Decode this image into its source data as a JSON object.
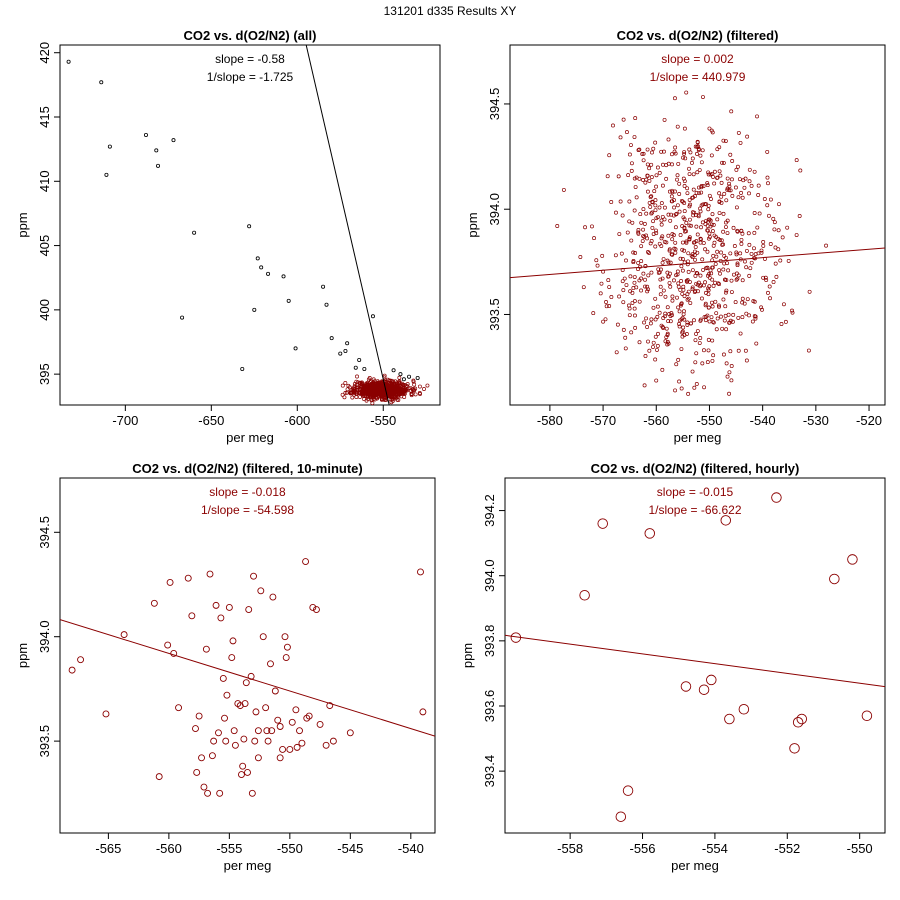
{
  "figure_title": "131201   d335   Results XY",
  "colors": {
    "all_points": "#000000",
    "filtered": "#8b0000",
    "all_line": "#000000"
  },
  "chart_data": [
    {
      "type": "scatter",
      "title": "CO2 vs. d(O2/N2) (all)",
      "xlabel": "per meg",
      "ylabel": "ppm",
      "xlim": [
        -738,
        -517
      ],
      "ylim": [
        392.6,
        420.6
      ],
      "xticks": [
        -700,
        -650,
        -600,
        -550
      ],
      "yticks": [
        395,
        400,
        405,
        410,
        415,
        420
      ],
      "annotations": [
        "slope = -0.58",
        "1/slope = -1.725"
      ],
      "fit": {
        "slope": -0.58,
        "intercept": 75.6
      },
      "point_size": 1.6,
      "outliers": [
        [
          -733,
          419.3
        ],
        [
          -714,
          417.7
        ],
        [
          -709,
          412.7
        ],
        [
          -711,
          410.5
        ],
        [
          -688,
          413.6
        ],
        [
          -682,
          412.4
        ],
        [
          -681,
          411.2
        ],
        [
          -672,
          413.2
        ],
        [
          -660,
          406.0
        ],
        [
          -667,
          399.4
        ],
        [
          -632,
          395.4
        ],
        [
          -628,
          406.5
        ],
        [
          -623,
          404.0
        ],
        [
          -621,
          403.3
        ],
        [
          -617,
          402.8
        ],
        [
          -608,
          402.6
        ],
        [
          -625,
          400.0
        ],
        [
          -605,
          400.7
        ],
        [
          -601,
          397.0
        ],
        [
          -585,
          401.8
        ],
        [
          -583,
          400.4
        ],
        [
          -580,
          397.8
        ],
        [
          -575,
          396.6
        ],
        [
          -572,
          396.8
        ],
        [
          -571,
          397.4
        ],
        [
          -566,
          395.5
        ],
        [
          -564,
          396.1
        ],
        [
          -561,
          395.4
        ],
        [
          -556,
          399.5
        ],
        [
          -544,
          395.3
        ],
        [
          -540,
          395.0
        ],
        [
          -535,
          394.8
        ],
        [
          -530,
          394.7
        ],
        [
          -538,
          394.6
        ]
      ],
      "cluster": {
        "x_center": -551,
        "x_spread": 8,
        "x_min": -575,
        "x_max": -524,
        "y_center": 393.8,
        "y_spread": 0.35,
        "n": 700,
        "seed": 11,
        "color": "#8b0000"
      }
    },
    {
      "type": "scatter",
      "title": "CO2 vs. d(O2/N2) (filtered)",
      "xlabel": "per meg",
      "ylabel": "ppm",
      "xlim": [
        -587.5,
        -517
      ],
      "ylim": [
        393.07,
        394.78
      ],
      "xticks": [
        -580,
        -570,
        -560,
        -550,
        -540,
        -530,
        -520
      ],
      "yticks": [
        393.5,
        394.0,
        394.5
      ],
      "annotations": [
        "slope = 0.002",
        "1/slope = 440.979"
      ],
      "fit": {
        "slope": 0.002,
        "intercept": 394.85
      },
      "point_size": 1.6,
      "cluster": {
        "x_center": -554,
        "x_spread": 8,
        "x_min": -585,
        "x_max": -519,
        "y_center": 393.8,
        "y_spread": 0.33,
        "n": 800,
        "seed": 23,
        "color": "#8b0000"
      }
    },
    {
      "type": "scatter",
      "title": "CO2 vs. d(O2/N2) (filtered, 10-minute)",
      "xlabel": "per meg",
      "ylabel": "ppm",
      "xlim": [
        -569,
        -538
      ],
      "ylim": [
        393.06,
        394.76
      ],
      "xticks": [
        -565,
        -560,
        -555,
        -550,
        -545,
        -540
      ],
      "yticks": [
        393.5,
        394.0,
        394.5
      ],
      "annotations": [
        "slope = -0.018",
        "1/slope = -54.598"
      ],
      "fit": {
        "slope": -0.018,
        "intercept": 383.84
      },
      "point_size": 3.0,
      "points": [
        [
          -568,
          393.84
        ],
        [
          -567.3,
          393.89
        ],
        [
          -565.2,
          393.63
        ],
        [
          -563.7,
          394.01
        ],
        [
          -561.2,
          394.16
        ],
        [
          -560.8,
          393.33
        ],
        [
          -560.1,
          393.96
        ],
        [
          -559.9,
          394.26
        ],
        [
          -559.6,
          393.92
        ],
        [
          -559.2,
          393.66
        ],
        [
          -558.4,
          394.28
        ],
        [
          -558.1,
          394.1
        ],
        [
          -557.8,
          393.56
        ],
        [
          -557.7,
          393.35
        ],
        [
          -557.5,
          393.62
        ],
        [
          -557.3,
          393.42
        ],
        [
          -557.1,
          393.28
        ],
        [
          -556.9,
          393.94
        ],
        [
          -556.6,
          394.3
        ],
        [
          -556.4,
          393.43
        ],
        [
          -556.3,
          393.5
        ],
        [
          -556.1,
          394.15
        ],
        [
          -555.9,
          393.54
        ],
        [
          -555.7,
          394.09
        ],
        [
          -555.4,
          393.61
        ],
        [
          -555.2,
          393.72
        ],
        [
          -555.0,
          394.14
        ],
        [
          -554.8,
          393.9
        ],
        [
          -554.5,
          393.48
        ],
        [
          -554.3,
          393.68
        ],
        [
          -554.1,
          393.67
        ],
        [
          -553.8,
          393.51
        ],
        [
          -553.6,
          393.78
        ],
        [
          -553.5,
          393.35
        ],
        [
          -553.4,
          394.13
        ],
        [
          -553.2,
          393.81
        ],
        [
          -553.0,
          394.29
        ],
        [
          -552.8,
          393.64
        ],
        [
          -552.6,
          393.42
        ],
        [
          -552.4,
          394.22
        ],
        [
          -552.2,
          394.0
        ],
        [
          -552.0,
          393.66
        ],
        [
          -551.8,
          393.5
        ],
        [
          -551.6,
          393.87
        ],
        [
          -551.4,
          394.19
        ],
        [
          -551.2,
          393.74
        ],
        [
          -551.0,
          393.6
        ],
        [
          -550.8,
          393.57
        ],
        [
          -550.6,
          393.46
        ],
        [
          -550.4,
          394.0
        ],
        [
          -550.2,
          393.95
        ],
        [
          -550.0,
          393.46
        ],
        [
          -549.8,
          393.59
        ],
        [
          -549.5,
          393.65
        ],
        [
          -549.2,
          393.55
        ],
        [
          -549.0,
          393.49
        ],
        [
          -548.7,
          394.36
        ],
        [
          -548.4,
          393.62
        ],
        [
          -548.1,
          394.14
        ],
        [
          -547.8,
          394.13
        ],
        [
          -547.5,
          393.58
        ],
        [
          -547.0,
          393.48
        ],
        [
          -546.7,
          393.67
        ],
        [
          -546.4,
          393.5
        ],
        [
          -545.0,
          393.54
        ],
        [
          -539.2,
          394.31
        ],
        [
          -539.0,
          393.64
        ],
        [
          -555.5,
          393.8
        ],
        [
          -555.3,
          393.5
        ],
        [
          -555.8,
          393.25
        ],
        [
          -556.8,
          393.25
        ],
        [
          -553.9,
          393.38
        ],
        [
          -553.1,
          393.25
        ],
        [
          -552.6,
          393.55
        ],
        [
          -551.5,
          393.55
        ],
        [
          -550.8,
          393.42
        ],
        [
          -554.6,
          393.55
        ],
        [
          -554.0,
          393.34
        ],
        [
          -548.6,
          393.61
        ],
        [
          -549.4,
          393.47
        ],
        [
          -550.3,
          393.9
        ],
        [
          -553.7,
          393.68
        ],
        [
          -551.9,
          393.55
        ],
        [
          -552.9,
          393.5
        ],
        [
          -554.7,
          393.98
        ]
      ]
    },
    {
      "type": "scatter",
      "title": "CO2 vs. d(O2/N2) (filtered, hourly)",
      "xlabel": "per meg",
      "ylabel": "ppm",
      "xlim": [
        -559.8,
        -549.3
      ],
      "ylim": [
        393.21,
        394.3
      ],
      "xticks": [
        -558,
        -556,
        -554,
        -552,
        -550
      ],
      "yticks": [
        393.4,
        393.6,
        393.8,
        394.0,
        394.2
      ],
      "annotations": [
        "slope = -0.015",
        "1/slope = -66.622"
      ],
      "fit": {
        "slope": -0.015,
        "intercept": 385.42
      },
      "point_size": 4.8,
      "points": [
        [
          -559.5,
          393.81
        ],
        [
          -557.6,
          393.94
        ],
        [
          -557.1,
          394.16
        ],
        [
          -556.6,
          393.26
        ],
        [
          -556.4,
          393.34
        ],
        [
          -555.8,
          394.13
        ],
        [
          -554.8,
          393.66
        ],
        [
          -554.3,
          393.65
        ],
        [
          -554.1,
          393.68
        ],
        [
          -553.7,
          394.17
        ],
        [
          -553.6,
          393.56
        ],
        [
          -553.2,
          393.59
        ],
        [
          -552.3,
          394.24
        ],
        [
          -551.8,
          393.47
        ],
        [
          -551.7,
          393.55
        ],
        [
          -551.6,
          393.56
        ],
        [
          -550.7,
          393.99
        ],
        [
          -550.2,
          394.05
        ],
        [
          -549.8,
          393.57
        ]
      ]
    }
  ]
}
